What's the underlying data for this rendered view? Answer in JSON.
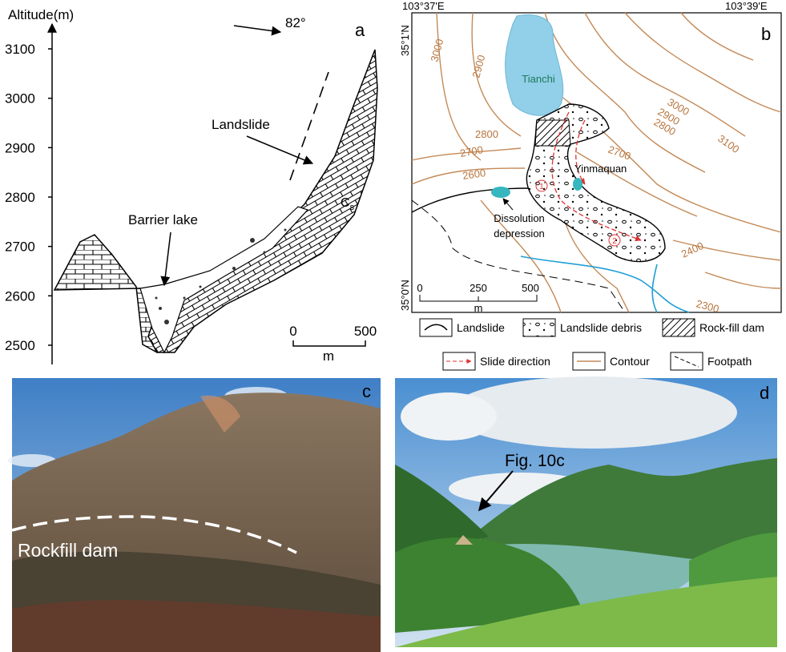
{
  "panel_a": {
    "label": "a",
    "y_axis_title": "Altitude(m)",
    "yticks": [
      2500,
      2600,
      2700,
      2800,
      2900,
      3000,
      3100
    ],
    "direction": "82°",
    "landslide": "Landslide",
    "barrier_lake": "Barrier lake",
    "formation": {
      "main": "C",
      "sub": "s"
    },
    "scale": {
      "start": "0",
      "end": "500",
      "unit": "m"
    }
  },
  "panel_b": {
    "label": "b",
    "longitudes": [
      "103°37'E",
      "103°39'E"
    ],
    "latitudes": [
      "35°1'N",
      "35°0'N"
    ],
    "lake": "Tianchi",
    "spring": "Yinmaquan",
    "depression": [
      "Dissolution",
      "depression"
    ],
    "slide_paths": [
      "1",
      "2"
    ],
    "contour_labels": [
      "3000",
      "2900",
      "2800",
      "2700",
      "2600",
      "3000",
      "2900",
      "2800",
      "2700",
      "3100",
      "2400",
      "2300"
    ],
    "scale": {
      "ticks": [
        "0",
        "250",
        "500"
      ],
      "unit": "m"
    },
    "legend": [
      "Landslide",
      "Landslide debris",
      "Rock-fill dam",
      "Slide direction",
      "Contour",
      "Footpath"
    ]
  },
  "panel_c": {
    "label": "c",
    "annotation": "Rockfill dam"
  },
  "panel_d": {
    "label": "d",
    "annotation": "Fig. 10c"
  }
}
